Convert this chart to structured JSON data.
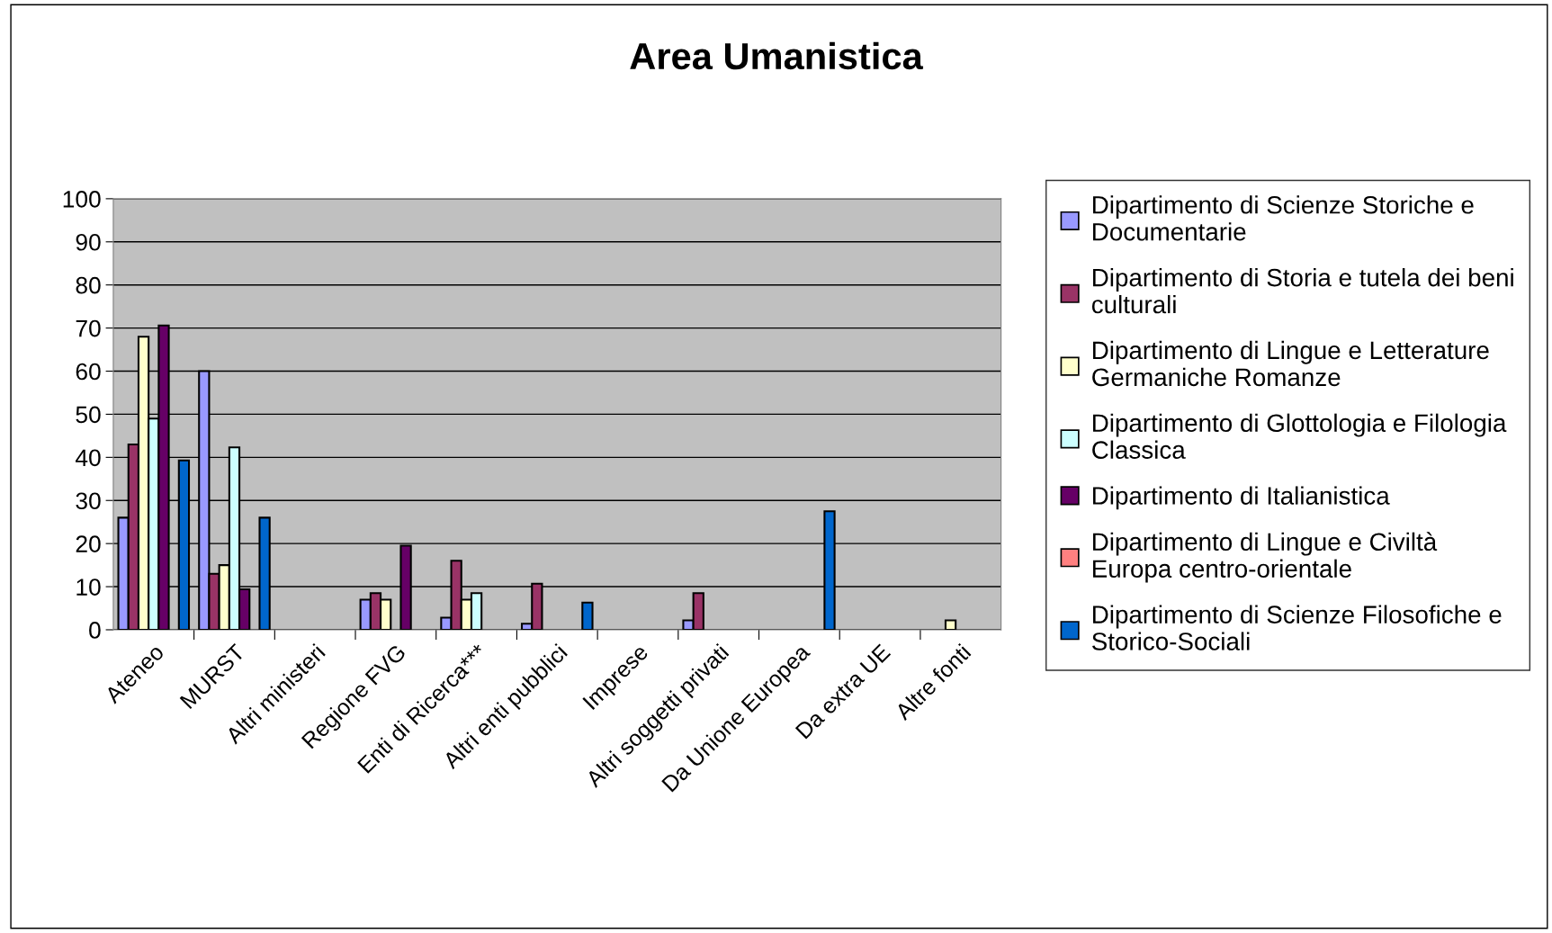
{
  "chart_data": {
    "type": "bar",
    "title": "Area Umanistica",
    "categories": [
      "Ateneo",
      "MURST",
      "Altri ministeri",
      "Regione FVG",
      "Enti di Ricerca***",
      "Altri enti pubblici",
      "Imprese",
      "Altri soggetti privati",
      "Da Unione Europea",
      "Da extra UE",
      "Altre fonti"
    ],
    "series": [
      {
        "name": "Dipartimento di Scienze Storiche e\nDocumentarie",
        "color": "#9999ff",
        "values": [
          26,
          60,
          null,
          7,
          2.8,
          1.4,
          null,
          2.2,
          null,
          null,
          null
        ]
      },
      {
        "name": "Dipartimento di Storia e tutela dei beni\nculturali",
        "color": "#993366",
        "values": [
          43,
          13,
          null,
          8.5,
          16,
          10.7,
          null,
          8.5,
          null,
          null,
          null
        ]
      },
      {
        "name": "Dipartimento di Lingue e Letterature\nGermaniche Romanze",
        "color": "#ffffcc",
        "values": [
          68,
          15,
          null,
          7,
          7,
          null,
          null,
          null,
          null,
          null,
          2.2
        ]
      },
      {
        "name": "Dipartimento di Glottologia e Filologia\nClassica",
        "color": "#ccffff",
        "values": [
          49,
          42.3,
          null,
          null,
          8.5,
          null,
          null,
          null,
          null,
          null,
          null
        ]
      },
      {
        "name": "Dipartimento di Italianistica",
        "color": "#660066",
        "values": [
          70.6,
          9.4,
          null,
          19.5,
          null,
          null,
          null,
          null,
          null,
          null,
          null
        ]
      },
      {
        "name": "Dipartimento di Lingue e Civiltà\nEuropa centro-orientale",
        "color": "#ff8080",
        "values": [
          null,
          null,
          null,
          null,
          null,
          null,
          null,
          null,
          null,
          null,
          null
        ]
      },
      {
        "name": "Dipartimento di Scienze Filosofiche e\nStorico-Sociali",
        "color": "#0066cc",
        "values": [
          39.3,
          26,
          null,
          null,
          null,
          6.3,
          null,
          null,
          27.5,
          null,
          null
        ]
      }
    ],
    "ylim": [
      0,
      100
    ],
    "yticks": [
      0,
      10,
      20,
      30,
      40,
      50,
      60,
      70,
      80,
      90,
      100
    ],
    "grid": "y",
    "legend": "right"
  }
}
